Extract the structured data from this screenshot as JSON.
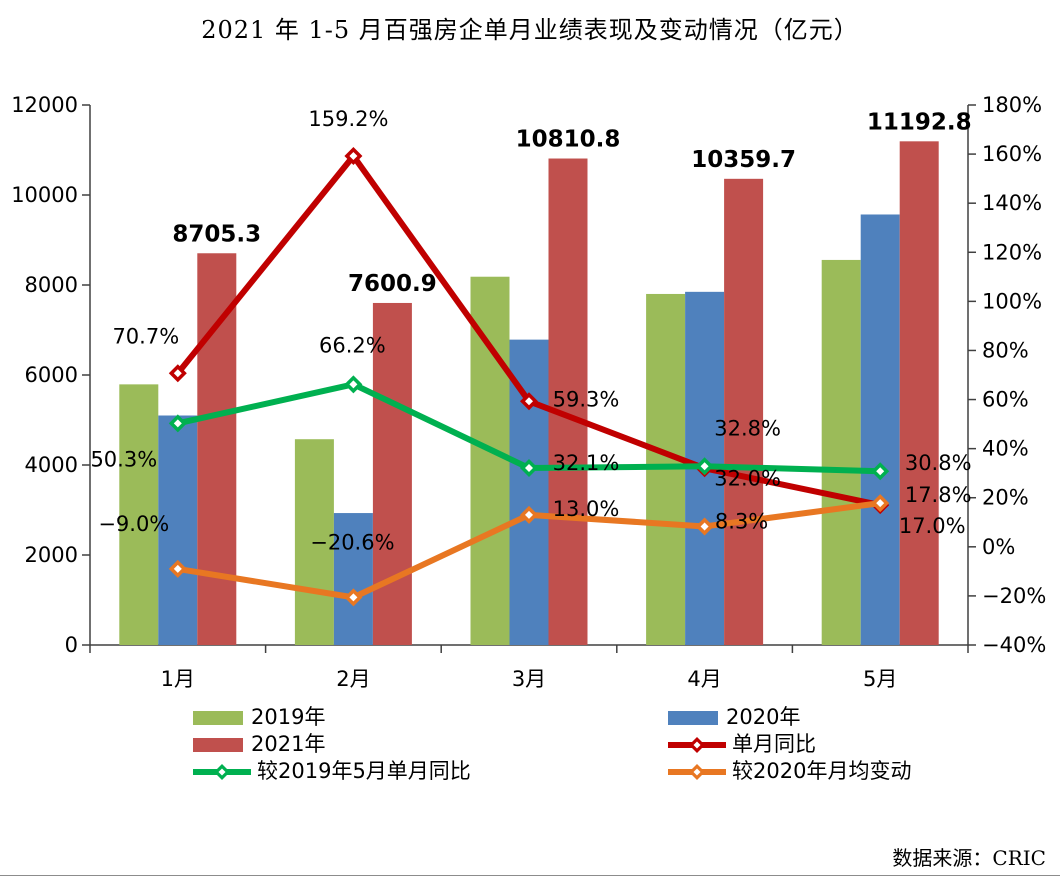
{
  "title": "2021 年 1-5 月百强房企单月业绩表现及变动情况（亿元）",
  "source": "数据来源：CRIC",
  "chart_data": {
    "type": "bar",
    "subtype": "combo-bar-line-dual-axis",
    "unit": "亿元",
    "categories": [
      "1月",
      "2月",
      "3月",
      "4月",
      "5月"
    ],
    "bar_series": [
      {
        "name": "2019年",
        "color": "#9BBB59",
        "values": [
          5792,
          4573,
          8184,
          7801,
          8557
        ]
      },
      {
        "name": "2020年",
        "color": "#4F81BD",
        "values": [
          5100,
          2932,
          6786,
          7848,
          9567
        ]
      },
      {
        "name": "2021年",
        "color": "#C0504D",
        "values": [
          8705.3,
          7600.9,
          10810.8,
          10359.7,
          11192.8
        ],
        "labels": [
          "8705.3",
          "7600.9",
          "10810.8",
          "10359.7",
          "11192.8"
        ]
      }
    ],
    "line_series": [
      {
        "name": "单月同比",
        "color": "#C00000",
        "values": [
          70.7,
          159.2,
          59.3,
          32.0,
          17.0
        ],
        "labels": [
          "70.7%",
          "159.2%",
          "59.3%",
          "32.0%",
          "17.0%"
        ]
      },
      {
        "name": "较2019年5月单月同比",
        "color": "#00B050",
        "values": [
          50.3,
          66.2,
          32.1,
          32.8,
          30.8
        ],
        "labels": [
          "50.3%",
          "66.2%",
          "32.1%",
          "32.8%",
          "30.8%"
        ]
      },
      {
        "name": "较2020年月均变动",
        "color": "#E87722",
        "values": [
          -9.0,
          -20.6,
          13.0,
          8.3,
          17.8
        ],
        "labels": [
          "−9.0%",
          "−20.6%",
          "13.0%",
          "8.3%",
          "17.8%"
        ]
      }
    ],
    "left_axis": {
      "min": 0,
      "max": 12000,
      "step": 2000,
      "ticks": [
        "0",
        "2000",
        "4000",
        "6000",
        "8000",
        "10000",
        "12000"
      ]
    },
    "right_axis": {
      "min": -40,
      "max": 180,
      "step": 20,
      "ticks": [
        "−40%",
        "−20%",
        "0%",
        "20%",
        "40%",
        "60%",
        "80%",
        "100%",
        "120%",
        "140%",
        "160%",
        "180%"
      ]
    },
    "legend": {
      "left": [
        {
          "label": "2019年",
          "swatch": "bar",
          "color": "#9BBB59"
        },
        {
          "label": "2021年",
          "swatch": "bar",
          "color": "#C0504D"
        },
        {
          "label": "较2019年5月单月同比",
          "swatch": "line",
          "color": "#00B050"
        }
      ],
      "right": [
        {
          "label": "2020年",
          "swatch": "bar",
          "color": "#4F81BD"
        },
        {
          "label": "单月同比",
          "swatch": "line",
          "color": "#C00000"
        },
        {
          "label": "较2020年月均变动",
          "swatch": "line",
          "color": "#E87722"
        }
      ]
    },
    "legend_position": "bottom",
    "grid": false
  }
}
